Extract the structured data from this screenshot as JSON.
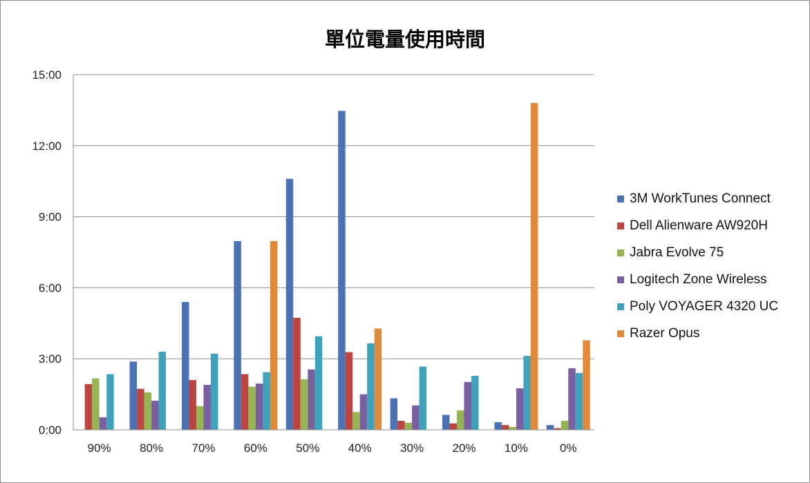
{
  "chart_data": {
    "type": "bar",
    "title": "單位電量使用時間",
    "xlabel": "",
    "ylabel": "",
    "categories": [
      "90%",
      "80%",
      "70%",
      "60%",
      "50%",
      "40%",
      "30%",
      "20%",
      "10%",
      "0%"
    ],
    "y_ticks": [
      "0:00",
      "3:00",
      "6:00",
      "9:00",
      "12:00",
      "15:00"
    ],
    "ylim_hours": [
      0,
      15
    ],
    "value_unit": "hours",
    "grid": true,
    "legend_position": "right",
    "series": [
      {
        "name": "3M WorkTunes Connect",
        "color": "#4a73b3",
        "values": [
          null,
          2.88,
          5.4,
          7.97,
          10.6,
          13.47,
          1.33,
          0.63,
          0.32,
          0.2
        ]
      },
      {
        "name": "Dell Alienware AW920H",
        "color": "#bd4541",
        "values": [
          1.93,
          1.73,
          2.1,
          2.35,
          4.73,
          3.28,
          0.38,
          0.27,
          0.2,
          0.07
        ]
      },
      {
        "name": "Jabra Evolve 75",
        "color": "#95b552",
        "values": [
          2.17,
          1.58,
          1.0,
          1.82,
          2.13,
          0.75,
          0.3,
          0.82,
          0.12,
          0.38
        ]
      },
      {
        "name": "Logitech Zone Wireless",
        "color": "#7c5fa0",
        "values": [
          0.53,
          1.23,
          1.9,
          1.95,
          2.55,
          1.5,
          1.03,
          2.02,
          1.75,
          2.6
        ]
      },
      {
        "name": "Poly VOYAGER 4320 UC",
        "color": "#3ea2bb",
        "values": [
          2.35,
          3.3,
          3.22,
          2.43,
          3.95,
          3.65,
          2.67,
          2.28,
          3.12,
          2.4
        ]
      },
      {
        "name": "Razer Opus",
        "color": "#e28a3c",
        "values": [
          null,
          null,
          null,
          7.97,
          null,
          4.28,
          null,
          null,
          13.8,
          3.78
        ]
      }
    ]
  }
}
